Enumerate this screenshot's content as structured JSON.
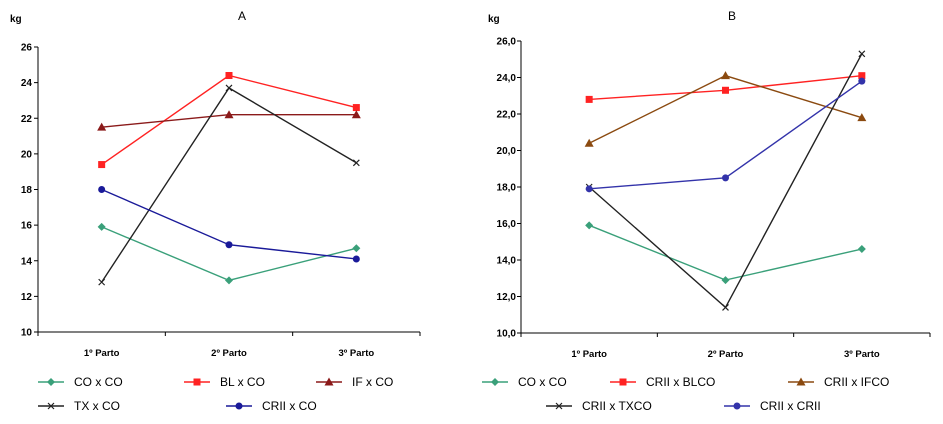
{
  "chart_data": [
    {
      "type": "line",
      "title": "A",
      "ylabel": "kg",
      "ylim": [
        10,
        26
      ],
      "yticks": [
        "10",
        "12",
        "14",
        "16",
        "18",
        "20",
        "22",
        "24",
        "26"
      ],
      "categories": [
        "1º Parto",
        "2º Parto",
        "3º Parto"
      ],
      "grid": false,
      "legend_position": "bottom",
      "series": [
        {
          "name": "CO x CO",
          "values": [
            15.9,
            12.9,
            14.7
          ],
          "color": "#3aa07a",
          "marker": "diamond"
        },
        {
          "name": "BL x CO",
          "values": [
            19.4,
            24.4,
            22.6
          ],
          "color": "#ff2222",
          "marker": "square"
        },
        {
          "name": "IF x CO",
          "values": [
            21.5,
            22.2,
            22.2
          ],
          "color": "#8b1a1a",
          "marker": "triangle"
        },
        {
          "name": "TX x CO",
          "values": [
            12.8,
            23.7,
            19.5
          ],
          "color": "#222222",
          "marker": "x"
        },
        {
          "name": "CRII x CO",
          "values": [
            18.0,
            14.9,
            14.1
          ],
          "color": "#1a1a99",
          "marker": "circle"
        }
      ]
    },
    {
      "type": "line",
      "title": "B",
      "ylabel": "kg",
      "ylim": [
        10,
        26
      ],
      "yticks": [
        "10,0",
        "12,0",
        "14,0",
        "16,0",
        "18,0",
        "20,0",
        "22,0",
        "24,0",
        "26,0"
      ],
      "categories": [
        "1º Parto",
        "2º Parto",
        "3º Parto"
      ],
      "grid": false,
      "legend_position": "bottom",
      "series": [
        {
          "name": "CO x CO",
          "values": [
            15.9,
            12.9,
            14.6
          ],
          "color": "#3aa07a",
          "marker": "diamond"
        },
        {
          "name": "CRII x BLCO",
          "values": [
            22.8,
            23.3,
            24.1
          ],
          "color": "#ff2222",
          "marker": "square"
        },
        {
          "name": "CRII x IFCO",
          "values": [
            20.4,
            24.1,
            21.8
          ],
          "color": "#8b4a10",
          "marker": "triangle"
        },
        {
          "name": "CRII x TXCO",
          "values": [
            18.0,
            11.4,
            25.3
          ],
          "color": "#222222",
          "marker": "x"
        },
        {
          "name": "CRII x CRII",
          "values": [
            17.9,
            18.5,
            23.8
          ],
          "color": "#3333aa",
          "marker": "circle"
        }
      ]
    }
  ]
}
